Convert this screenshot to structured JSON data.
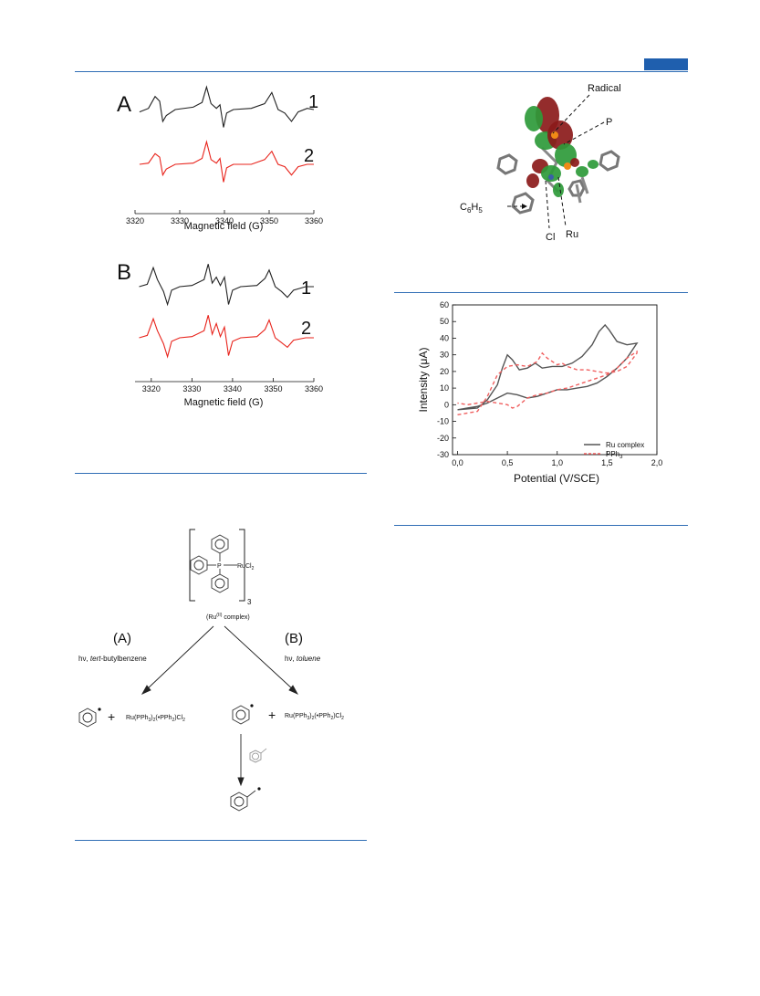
{
  "page": {
    "header_tab_color": "#1f5fae",
    "rule_color": "#2f6db5"
  },
  "epr": {
    "panel_a": {
      "label": "A",
      "trace_1_label": "1",
      "trace_2_label": "2"
    },
    "panel_b": {
      "label": "B",
      "trace_1_label": "1",
      "trace_2_label": "2"
    },
    "xlabel": "Magnetic field (G)",
    "trace_colors": {
      "experimental": "#222222",
      "simulated": "#e8231b"
    }
  },
  "dft": {
    "labels": {
      "radical": "Radical",
      "p": "P",
      "c6h5_c": "C",
      "c6h5_sub6": "6",
      "c6h5_h": "H",
      "c6h5_sub5": "5",
      "cl": "Cl",
      "ru": "Ru"
    },
    "orbital_colors": {
      "lobe_a": "#8b1a1a",
      "lobe_b": "#2e9a3a"
    }
  },
  "scheme": {
    "complex_label_prefix": "(Ru",
    "complex_label_sup": "(II)",
    "complex_label_suffix": " complex)",
    "rucl2": "RuCl",
    "rucl2_sub": "2",
    "p_atom": "P",
    "bracket_sub": "3",
    "route_a": {
      "letter": "(A)",
      "cond_prefix": "hν, ",
      "cond_italic": "tert",
      "cond_suffix": "-butylbenzene"
    },
    "route_b": {
      "letter": "(B)",
      "cond_prefix": "hν, ",
      "cond_italic": "toluene"
    },
    "plus": "+",
    "product": {
      "p1": "Ru(PPh",
      "s1": "3",
      "p2": ")",
      "s2": "2",
      "p3": "(•PPh",
      "s3": "2",
      "p4": ")Cl",
      "s4": "2"
    }
  },
  "chart_data": [
    {
      "type": "line",
      "panel": "A",
      "xlabel": "Magnetic field (G)",
      "x_ticks": [
        3320,
        3330,
        3340,
        3350,
        3360
      ],
      "xlim": [
        3320,
        3360
      ],
      "series": [
        {
          "name": "1",
          "color": "#222222",
          "x": [
            3321,
            3323,
            3324.5,
            3325.5,
            3326.2,
            3327,
            3329,
            3333,
            3335,
            3336,
            3337,
            3338.2,
            3339,
            3339.8,
            3340.5,
            3342,
            3346,
            3349,
            3350.6,
            3352,
            3353.5,
            3355,
            3356.5,
            3358.5,
            3360
          ],
          "y": [
            -0.1,
            0.05,
            0.55,
            0.35,
            -0.5,
            -0.25,
            0.0,
            0.1,
            0.3,
            0.95,
            0.25,
            0.05,
            0.2,
            -0.75,
            -0.15,
            0.0,
            0.05,
            0.25,
            0.72,
            0.0,
            -0.15,
            -0.5,
            -0.1,
            0.05,
            0.0
          ]
        },
        {
          "name": "2",
          "color": "#e8231b",
          "x": [
            3321,
            3323,
            3324.5,
            3325.5,
            3326.2,
            3327,
            3329,
            3333,
            3335,
            3336,
            3337,
            3338.2,
            3339,
            3339.8,
            3340.5,
            3342,
            3346,
            3349,
            3350.6,
            3352,
            3353.5,
            3355,
            3356.5,
            3358.5,
            3360
          ],
          "y": [
            0.0,
            0.05,
            0.45,
            0.3,
            -0.45,
            -0.2,
            0.0,
            0.05,
            0.25,
            0.95,
            0.2,
            0.05,
            0.25,
            -0.75,
            -0.15,
            0.0,
            0.0,
            0.2,
            0.55,
            0.0,
            -0.1,
            -0.45,
            -0.1,
            0.0,
            0.0
          ]
        }
      ]
    },
    {
      "type": "line",
      "panel": "B",
      "xlabel": "Magnetic field (G)",
      "x_ticks": [
        3320,
        3330,
        3340,
        3350,
        3360
      ],
      "xlim": [
        3316,
        3360
      ],
      "series": [
        {
          "name": "1",
          "color": "#222222",
          "x": [
            3317,
            3319,
            3320.5,
            3321.5,
            3323,
            3324,
            3325,
            3327,
            3330,
            3333,
            3334,
            3335,
            3336,
            3337,
            3338,
            3339,
            3340,
            3342,
            3346,
            3348,
            3349,
            3350.5,
            3352,
            3353.5,
            3355,
            3358,
            3360
          ],
          "y": [
            0.0,
            0.1,
            0.8,
            0.3,
            -0.2,
            -0.75,
            -0.15,
            0.0,
            0.05,
            0.3,
            0.95,
            0.15,
            0.4,
            0.05,
            0.4,
            -0.75,
            -0.15,
            0.0,
            0.05,
            0.35,
            0.7,
            0.0,
            -0.2,
            -0.45,
            -0.15,
            0.0,
            0.0
          ]
        },
        {
          "name": "2",
          "color": "#e8231b",
          "x": [
            3317,
            3319,
            3320.5,
            3321.5,
            3323,
            3324,
            3325,
            3327,
            3330,
            3333,
            3334,
            3335,
            3336,
            3337,
            3338,
            3339,
            3340,
            3342,
            3346,
            3348,
            3349,
            3350.5,
            3352,
            3353.5,
            3355,
            3358,
            3360
          ],
          "y": [
            0.0,
            0.1,
            0.8,
            0.3,
            -0.25,
            -0.8,
            -0.15,
            0.0,
            0.05,
            0.3,
            0.95,
            0.15,
            0.6,
            0.05,
            0.45,
            -0.75,
            -0.15,
            0.0,
            0.05,
            0.35,
            0.75,
            0.0,
            -0.2,
            -0.4,
            -0.1,
            0.0,
            0.0
          ]
        }
      ]
    },
    {
      "type": "line",
      "panel": "cyclic-voltammogram",
      "xlabel": "Potential (V/SCE)",
      "ylabel": "Intensity (μA)",
      "xlim": [
        -0.05,
        2.0
      ],
      "ylim": [
        -30,
        60
      ],
      "x_ticks": [
        "0,0",
        "0,5",
        "1,0",
        "1,5",
        "2,0"
      ],
      "x_tick_values": [
        0.0,
        0.5,
        1.0,
        1.5,
        2.0
      ],
      "y_ticks": [
        -30,
        -20,
        -10,
        0,
        10,
        20,
        30,
        40,
        50,
        60
      ],
      "legend_position": "lower-right",
      "series": [
        {
          "name": "Ru complex",
          "style": "solid",
          "color": "#555555",
          "x": [
            0.0,
            0.2,
            0.3,
            0.4,
            0.45,
            0.5,
            0.55,
            0.62,
            0.7,
            0.78,
            0.85,
            0.95,
            1.05,
            1.15,
            1.25,
            1.35,
            1.42,
            1.48,
            1.52,
            1.6,
            1.7,
            1.8,
            1.8,
            1.7,
            1.6,
            1.5,
            1.4,
            1.3,
            1.2,
            1.1,
            1.0,
            0.9,
            0.8,
            0.7,
            0.6,
            0.5,
            0.4,
            0.3,
            0.2,
            0.1,
            0.0
          ],
          "y": [
            -3,
            -2,
            3,
            12,
            22,
            30,
            27,
            21,
            22,
            25,
            22,
            23,
            23,
            25,
            29,
            36,
            44,
            48,
            45,
            38,
            36,
            37,
            37,
            28,
            22,
            17,
            13,
            11,
            10,
            9,
            9,
            7,
            5,
            4,
            6,
            7,
            4,
            1,
            -1,
            -2,
            -3
          ]
        },
        {
          "name": "PPh3",
          "style": "dashed",
          "color": "#f06060",
          "x": [
            0.0,
            0.2,
            0.3,
            0.4,
            0.5,
            0.6,
            0.7,
            0.8,
            0.85,
            0.9,
            1.0,
            1.05,
            1.1,
            1.2,
            1.3,
            1.4,
            1.5,
            1.6,
            1.7,
            1.8,
            1.8,
            1.7,
            1.6,
            1.5,
            1.4,
            1.3,
            1.2,
            1.1,
            1.0,
            0.9,
            0.8,
            0.7,
            0.6,
            0.55,
            0.5,
            0.4,
            0.3,
            0.2,
            0.1,
            0.0
          ],
          "y": [
            -6,
            -4,
            5,
            18,
            23,
            24,
            23,
            26,
            31,
            28,
            24,
            25,
            23,
            21,
            21,
            20,
            19,
            20,
            23,
            31,
            32,
            28,
            22,
            18,
            16,
            14,
            12,
            10,
            9,
            7,
            6,
            4,
            -1,
            -2,
            0,
            1,
            2,
            1,
            0,
            1
          ]
        }
      ],
      "legend": {
        "ru": "Ru complex",
        "pph_prefix": "PPh",
        "pph_sub": "3"
      }
    }
  ]
}
